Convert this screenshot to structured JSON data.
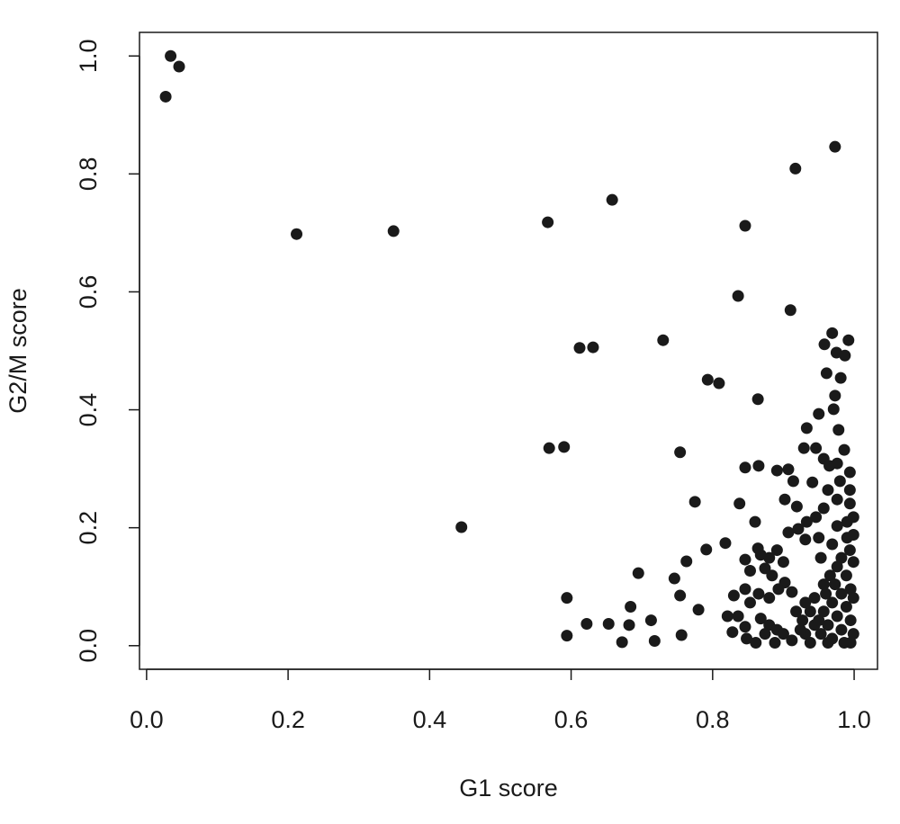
{
  "chart_data": {
    "type": "scatter",
    "x_label": "G1 score",
    "y_label": "G2/M score",
    "color": "#1a1a1a",
    "xlim": [
      -0.01,
      1.033
    ],
    "ylim": [
      -0.04,
      1.04
    ],
    "xticks": [
      {
        "value": 0,
        "label": "0.0"
      },
      0.2,
      0.4,
      0.6,
      0.8,
      {
        "value": 1,
        "label": "1.0"
      }
    ],
    "yticks": [
      {
        "value": 0,
        "label": "0.0"
      },
      0.2,
      0.4,
      0.6,
      0.8,
      {
        "value": 1,
        "label": "1.0"
      }
    ],
    "x": [
      0.027,
      0.034,
      0.046,
      0.212,
      0.349,
      0.567,
      0.658,
      0.846,
      0.917,
      0.973,
      0.836,
      0.91,
      0.612,
      0.631,
      0.73,
      0.793,
      0.809,
      0.864,
      0.569,
      0.59,
      0.754,
      0.445,
      0.775,
      0.838,
      0.86,
      0.818,
      0.791,
      0.763,
      0.695,
      0.746,
      0.594,
      0.754,
      0.78,
      0.684,
      0.622,
      0.653,
      0.682,
      0.713,
      0.594,
      0.756,
      0.672,
      0.718,
      0.846,
      0.865,
      0.891,
      0.907,
      0.914,
      0.902,
      0.919,
      0.907,
      0.921,
      0.929,
      0.933,
      0.946,
      0.95,
      0.958,
      0.961,
      0.969,
      0.971,
      0.973,
      0.975,
      0.981,
      0.987,
      0.992,
      0.978,
      0.986,
      0.957,
      0.965,
      0.976,
      0.994,
      0.994,
      0.98,
      0.963,
      0.941,
      0.994,
      0.976,
      0.957,
      0.946,
      0.933,
      0.99,
      0.976,
      0.95,
      0.931,
      0.99,
      0.969,
      0.994,
      0.982,
      0.953,
      0.88,
      0.891,
      0.868,
      0.864,
      0.846,
      0.853,
      0.874,
      0.884,
      0.9,
      0.902,
      0.912,
      0.893,
      0.88,
      0.865,
      0.846,
      0.853,
      0.83,
      0.821,
      0.836,
      0.868,
      0.88,
      0.891,
      0.9,
      0.912,
      0.888,
      0.861,
      0.848,
      0.828,
      0.846,
      0.874,
      0.927,
      0.938,
      0.944,
      0.957,
      0.966,
      0.976,
      0.989,
      0.995,
      0.982,
      0.969,
      0.957,
      0.944,
      0.931,
      0.938,
      0.953,
      0.963,
      0.976,
      0.989,
      0.995,
      0.982,
      0.969,
      0.995,
      0.999,
      0.999,
      0.999,
      0.999,
      0.999,
      0.986,
      0.963,
      0.95,
      0.924,
      0.918,
      0.931,
      0.96,
      0.973
    ],
    "values": [
      0.931,
      1.0,
      0.982,
      0.698,
      0.703,
      0.718,
      0.756,
      0.712,
      0.809,
      0.846,
      0.593,
      0.569,
      0.505,
      0.506,
      0.518,
      0.451,
      0.445,
      0.418,
      0.335,
      0.337,
      0.328,
      0.201,
      0.244,
      0.241,
      0.21,
      0.174,
      0.163,
      0.143,
      0.123,
      0.114,
      0.081,
      0.085,
      0.061,
      0.066,
      0.037,
      0.037,
      0.035,
      0.043,
      0.017,
      0.018,
      0.006,
      0.008,
      0.302,
      0.305,
      0.297,
      0.299,
      0.279,
      0.248,
      0.236,
      0.192,
      0.198,
      0.335,
      0.369,
      0.335,
      0.393,
      0.511,
      0.462,
      0.53,
      0.401,
      0.424,
      0.497,
      0.454,
      0.492,
      0.518,
      0.366,
      0.332,
      0.317,
      0.305,
      0.309,
      0.294,
      0.264,
      0.279,
      0.264,
      0.277,
      0.241,
      0.248,
      0.233,
      0.218,
      0.21,
      0.21,
      0.203,
      0.183,
      0.18,
      0.183,
      0.172,
      0.162,
      0.149,
      0.149,
      0.149,
      0.162,
      0.154,
      0.165,
      0.146,
      0.127,
      0.131,
      0.119,
      0.142,
      0.107,
      0.091,
      0.096,
      0.081,
      0.088,
      0.096,
      0.073,
      0.085,
      0.05,
      0.05,
      0.046,
      0.035,
      0.027,
      0.02,
      0.009,
      0.005,
      0.005,
      0.012,
      0.023,
      0.032,
      0.02,
      0.043,
      0.058,
      0.081,
      0.104,
      0.119,
      0.134,
      0.119,
      0.096,
      0.088,
      0.073,
      0.058,
      0.035,
      0.02,
      0.005,
      0.02,
      0.035,
      0.05,
      0.066,
      0.043,
      0.027,
      0.012,
      0.005,
      0.02,
      0.081,
      0.142,
      0.188,
      0.218,
      0.005,
      0.005,
      0.043,
      0.027,
      0.058,
      0.073,
      0.088,
      0.104
    ]
  }
}
